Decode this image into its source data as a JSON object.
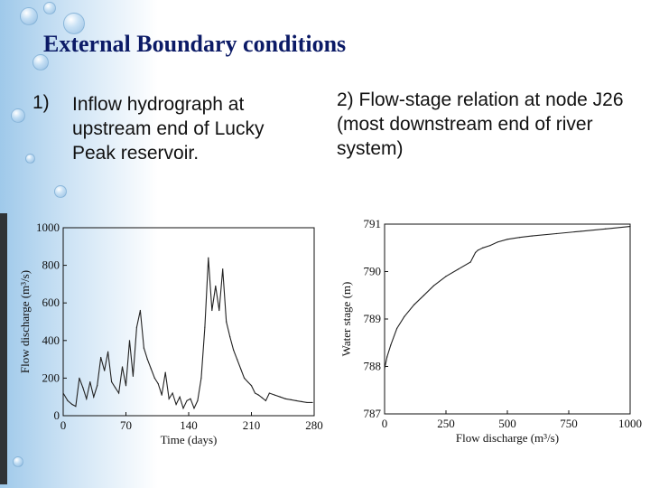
{
  "slide": {
    "title": "External Boundary conditions",
    "bullet1_num": "1)",
    "bullet1_text": "Inflow hydrograph at upstream end of Lucky Peak reservoir.",
    "bullet2_text": "2) Flow-stage relation at node J26 (most downstream end of river system)"
  },
  "colors": {
    "title": "#0b1a66",
    "bg_accent": "#9fc9ea",
    "line": "#222222"
  },
  "chart_data": [
    {
      "type": "line",
      "xlabel": "Time (days)",
      "ylabel": "Flow discharge (m³/s)",
      "xlim": [
        0,
        280
      ],
      "ylim": [
        0,
        1000
      ],
      "xticks": [
        "0",
        "70",
        "140",
        "210",
        "280"
      ],
      "yticks": [
        "0",
        "200",
        "400",
        "600",
        "800",
        "1000"
      ],
      "grid": false,
      "series": [
        {
          "x": [
            0,
            5,
            10,
            14,
            18,
            22,
            26,
            30,
            34,
            38,
            42,
            46,
            50,
            54,
            58,
            62,
            66,
            70,
            74,
            78,
            82,
            86,
            90,
            94,
            98,
            102,
            106,
            110,
            114,
            118,
            122,
            126,
            130,
            134,
            138,
            142,
            146,
            150,
            154,
            158,
            162,
            166,
            170,
            174,
            178,
            182,
            186,
            190,
            194,
            198,
            202,
            206,
            210,
            214,
            218,
            222,
            226,
            230,
            236,
            242,
            248,
            254,
            260,
            266,
            272,
            278
          ],
          "y": [
            120,
            80,
            60,
            50,
            200,
            150,
            90,
            180,
            100,
            160,
            310,
            240,
            340,
            180,
            150,
            120,
            260,
            160,
            400,
            210,
            470,
            560,
            360,
            300,
            250,
            200,
            170,
            110,
            230,
            90,
            120,
            60,
            100,
            40,
            80,
            90,
            40,
            80,
            200,
            470,
            840,
            560,
            690,
            560,
            780,
            500,
            420,
            350,
            300,
            250,
            200,
            180,
            160,
            120,
            110,
            95,
            80,
            120,
            110,
            100,
            90,
            85,
            80,
            75,
            70,
            70
          ]
        }
      ]
    },
    {
      "type": "line",
      "xlabel": "Flow discharge (m³/s)",
      "ylabel": "Water stage (m)",
      "xlim": [
        0,
        1000
      ],
      "ylim": [
        787,
        791
      ],
      "xticks": [
        "0",
        "250",
        "500",
        "750",
        "1000"
      ],
      "yticks": [
        "787",
        "788",
        "789",
        "790",
        "791"
      ],
      "grid": false,
      "series": [
        {
          "x": [
            0,
            10,
            25,
            50,
            80,
            120,
            160,
            200,
            250,
            300,
            350,
            370,
            380,
            400,
            430,
            460,
            500,
            550,
            600,
            700,
            800,
            900,
            1000
          ],
          "y": [
            787.95,
            788.2,
            788.45,
            788.8,
            789.05,
            789.3,
            789.5,
            789.7,
            789.9,
            790.05,
            790.2,
            790.4,
            790.45,
            790.5,
            790.55,
            790.62,
            790.68,
            790.72,
            790.75,
            790.8,
            790.85,
            790.9,
            790.95
          ]
        }
      ]
    }
  ]
}
